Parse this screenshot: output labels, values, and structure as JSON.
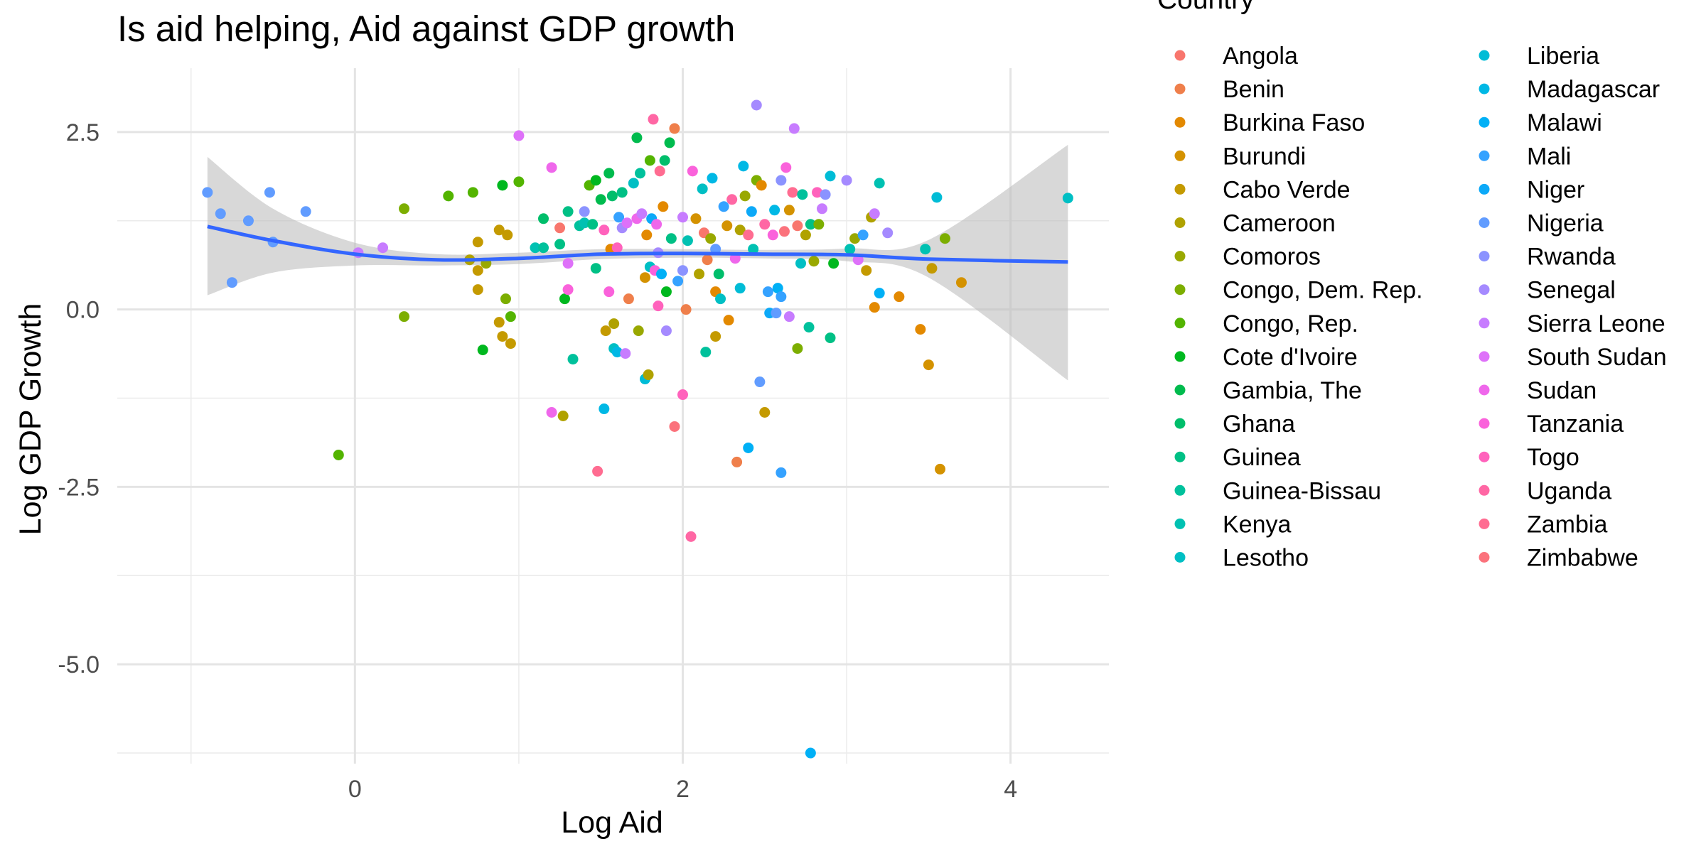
{
  "chart_data": {
    "type": "scatter",
    "title": "Is aid helping, Aid against GDP growth",
    "xlabel": "Log Aid",
    "ylabel": "Log GDP Growth",
    "xlim": [
      -1.45,
      4.6
    ],
    "ylim": [
      -6.4,
      3.4
    ],
    "x_ticks": [
      0,
      2,
      4
    ],
    "x_tick_labels": [
      "0",
      "2",
      "4"
    ],
    "y_ticks": [
      2.5,
      0.0,
      -2.5,
      -5.0
    ],
    "y_tick_labels": [
      "2.5",
      "0.0",
      "-2.5",
      "-5.0"
    ],
    "grid": true,
    "legend": {
      "title": "Country",
      "position": "right",
      "entries": [
        {
          "name": "Angola",
          "color": "#F8766D"
        },
        {
          "name": "Benin",
          "color": "#EF7F4B"
        },
        {
          "name": "Burkina Faso",
          "color": "#E38900"
        },
        {
          "name": "Burundi",
          "color": "#D49200"
        },
        {
          "name": "Cabo Verde",
          "color": "#C49A00"
        },
        {
          "name": "Cameroon",
          "color": "#B0A200"
        },
        {
          "name": "Comoros",
          "color": "#99A800"
        },
        {
          "name": "Congo, Dem. Rep.",
          "color": "#7CAE00"
        },
        {
          "name": "Congo, Rep.",
          "color": "#53B400"
        },
        {
          "name": "Cote d'Ivoire",
          "color": "#00B81F"
        },
        {
          "name": "Gambia, The",
          "color": "#00BB4E"
        },
        {
          "name": "Ghana",
          "color": "#00BE6B"
        },
        {
          "name": "Guinea",
          "color": "#00C085"
        },
        {
          "name": "Guinea-Bissau",
          "color": "#00C19C"
        },
        {
          "name": "Kenya",
          "color": "#00C1B2"
        },
        {
          "name": "Lesotho",
          "color": "#00BFC4"
        },
        {
          "name": "Liberia",
          "color": "#00BCD6"
        },
        {
          "name": "Madagascar",
          "color": "#00B8E5"
        },
        {
          "name": "Malawi",
          "color": "#00B0F6"
        },
        {
          "name": "Mali",
          "color": "#35A2FF"
        },
        {
          "name": "Niger",
          "color": "#0CA9F8"
        },
        {
          "name": "Nigeria",
          "color": "#619CFF"
        },
        {
          "name": "Rwanda",
          "color": "#8B93FF"
        },
        {
          "name": "Senegal",
          "color": "#A58AFF"
        },
        {
          "name": "Sierra Leone",
          "color": "#C77CFF"
        },
        {
          "name": "South Sudan",
          "color": "#DE71F9"
        },
        {
          "name": "Sudan",
          "color": "#EF67EB"
        },
        {
          "name": "Tanzania",
          "color": "#FA62DB"
        },
        {
          "name": "Togo",
          "color": "#FF62BC"
        },
        {
          "name": "Uganda",
          "color": "#FF67A4"
        },
        {
          "name": "Zambia",
          "color": "#FF6C91"
        },
        {
          "name": "Zimbabwe",
          "color": "#FB727C"
        }
      ]
    },
    "smooth": {
      "method": "loess",
      "color": "#3366FF",
      "band_color": "#BEBEBE",
      "x": [
        -0.9,
        -0.5,
        0.0,
        0.5,
        1.0,
        1.5,
        2.0,
        2.5,
        3.0,
        3.5,
        4.35
      ],
      "y": [
        1.17,
        0.97,
        0.78,
        0.7,
        0.72,
        0.78,
        0.79,
        0.78,
        0.77,
        0.71,
        0.67
      ],
      "lower": [
        0.2,
        0.52,
        0.62,
        0.62,
        0.64,
        0.71,
        0.73,
        0.72,
        0.68,
        0.45,
        -1.0
      ],
      "upper": [
        2.15,
        1.42,
        0.94,
        0.78,
        0.8,
        0.85,
        0.85,
        0.84,
        0.86,
        0.98,
        2.32
      ]
    },
    "points": [
      {
        "x": -0.9,
        "y": 1.65,
        "c": 21
      },
      {
        "x": -0.82,
        "y": 1.35,
        "c": 21
      },
      {
        "x": -0.75,
        "y": 0.38,
        "c": 21
      },
      {
        "x": -0.65,
        "y": 1.25,
        "c": 21
      },
      {
        "x": -0.52,
        "y": 1.65,
        "c": 21
      },
      {
        "x": -0.5,
        "y": 0.95,
        "c": 21
      },
      {
        "x": -0.3,
        "y": 1.38,
        "c": 21
      },
      {
        "x": 0.02,
        "y": 0.8,
        "c": 24
      },
      {
        "x": 0.17,
        "y": 0.87,
        "c": 24
      },
      {
        "x": -0.1,
        "y": -2.05,
        "c": 8
      },
      {
        "x": 0.3,
        "y": 1.42,
        "c": 7
      },
      {
        "x": 0.3,
        "y": -0.1,
        "c": 7
      },
      {
        "x": 0.57,
        "y": 1.6,
        "c": 8
      },
      {
        "x": 0.72,
        "y": 1.65,
        "c": 8
      },
      {
        "x": 0.7,
        "y": 0.7,
        "c": 5
      },
      {
        "x": 0.75,
        "y": 0.95,
        "c": 4
      },
      {
        "x": 0.75,
        "y": 0.55,
        "c": 4
      },
      {
        "x": 0.75,
        "y": 0.28,
        "c": 4
      },
      {
        "x": 0.78,
        "y": -0.57,
        "c": 9
      },
      {
        "x": 0.8,
        "y": 0.65,
        "c": 6
      },
      {
        "x": 0.88,
        "y": 1.12,
        "c": 4
      },
      {
        "x": 0.88,
        "y": -0.18,
        "c": 4
      },
      {
        "x": 0.9,
        "y": -0.38,
        "c": 4
      },
      {
        "x": 0.9,
        "y": 1.75,
        "c": 9
      },
      {
        "x": 0.92,
        "y": 0.15,
        "c": 7
      },
      {
        "x": 0.93,
        "y": 1.05,
        "c": 4
      },
      {
        "x": 0.95,
        "y": -0.48,
        "c": 4
      },
      {
        "x": 0.95,
        "y": -0.1,
        "c": 8
      },
      {
        "x": 1.0,
        "y": 2.45,
        "c": 25
      },
      {
        "x": 1.0,
        "y": 1.8,
        "c": 8
      },
      {
        "x": 1.1,
        "y": 0.87,
        "c": 14
      },
      {
        "x": 1.15,
        "y": 0.87,
        "c": 13
      },
      {
        "x": 1.15,
        "y": 1.28,
        "c": 11
      },
      {
        "x": 1.2,
        "y": 2.0,
        "c": 26
      },
      {
        "x": 1.2,
        "y": -1.45,
        "c": 26
      },
      {
        "x": 1.25,
        "y": 0.92,
        "c": 12
      },
      {
        "x": 1.25,
        "y": 1.15,
        "c": 0
      },
      {
        "x": 1.27,
        "y": -1.5,
        "c": 5
      },
      {
        "x": 1.28,
        "y": 0.15,
        "c": 9
      },
      {
        "x": 1.3,
        "y": 0.28,
        "c": 27
      },
      {
        "x": 1.3,
        "y": 0.65,
        "c": 25
      },
      {
        "x": 1.3,
        "y": 1.38,
        "c": 12
      },
      {
        "x": 1.33,
        "y": -0.7,
        "c": 13
      },
      {
        "x": 1.37,
        "y": 1.18,
        "c": 13
      },
      {
        "x": 1.4,
        "y": 1.38,
        "c": 22
      },
      {
        "x": 1.4,
        "y": 1.22,
        "c": 14
      },
      {
        "x": 1.43,
        "y": 1.75,
        "c": 8
      },
      {
        "x": 1.45,
        "y": 1.2,
        "c": 12
      },
      {
        "x": 1.47,
        "y": 0.58,
        "c": 12
      },
      {
        "x": 1.47,
        "y": 1.82,
        "c": 9
      },
      {
        "x": 1.48,
        "y": -2.28,
        "c": 30
      },
      {
        "x": 1.5,
        "y": 1.55,
        "c": 10
      },
      {
        "x": 1.52,
        "y": 1.12,
        "c": 28
      },
      {
        "x": 1.52,
        "y": -1.4,
        "c": 17
      },
      {
        "x": 1.53,
        "y": -0.3,
        "c": 4
      },
      {
        "x": 1.55,
        "y": 0.25,
        "c": 27
      },
      {
        "x": 1.55,
        "y": 1.92,
        "c": 10
      },
      {
        "x": 1.56,
        "y": 0.85,
        "c": 2
      },
      {
        "x": 1.57,
        "y": 1.6,
        "c": 11
      },
      {
        "x": 1.58,
        "y": -0.2,
        "c": 5
      },
      {
        "x": 1.58,
        "y": -0.55,
        "c": 15
      },
      {
        "x": 1.6,
        "y": 0.87,
        "c": 28
      },
      {
        "x": 1.6,
        "y": -0.6,
        "c": 17
      },
      {
        "x": 1.61,
        "y": 1.3,
        "c": 19
      },
      {
        "x": 1.63,
        "y": 1.65,
        "c": 12
      },
      {
        "x": 1.63,
        "y": 1.15,
        "c": 23
      },
      {
        "x": 1.65,
        "y": -0.62,
        "c": 24
      },
      {
        "x": 1.66,
        "y": 1.22,
        "c": 25
      },
      {
        "x": 1.67,
        "y": 0.15,
        "c": 1
      },
      {
        "x": 1.7,
        "y": 1.78,
        "c": 15
      },
      {
        "x": 1.72,
        "y": 2.42,
        "c": 10
      },
      {
        "x": 1.72,
        "y": 1.28,
        "c": 26
      },
      {
        "x": 1.73,
        "y": -0.3,
        "c": 6
      },
      {
        "x": 1.74,
        "y": 1.92,
        "c": 13
      },
      {
        "x": 1.75,
        "y": 1.35,
        "c": 24
      },
      {
        "x": 1.77,
        "y": 0.45,
        "c": 3
      },
      {
        "x": 1.77,
        "y": -0.98,
        "c": 16
      },
      {
        "x": 1.78,
        "y": 1.05,
        "c": 2
      },
      {
        "x": 1.79,
        "y": -0.92,
        "c": 5
      },
      {
        "x": 1.8,
        "y": 2.1,
        "c": 8
      },
      {
        "x": 1.8,
        "y": 0.6,
        "c": 15
      },
      {
        "x": 1.81,
        "y": 1.28,
        "c": 20
      },
      {
        "x": 1.82,
        "y": 2.68,
        "c": 29
      },
      {
        "x": 1.83,
        "y": 0.55,
        "c": 27
      },
      {
        "x": 1.84,
        "y": 1.2,
        "c": 26
      },
      {
        "x": 1.85,
        "y": 0.8,
        "c": 23
      },
      {
        "x": 1.85,
        "y": 0.05,
        "c": 28
      },
      {
        "x": 1.86,
        "y": 1.95,
        "c": 30
      },
      {
        "x": 1.87,
        "y": 0.5,
        "c": 18
      },
      {
        "x": 1.88,
        "y": 1.45,
        "c": 2
      },
      {
        "x": 1.89,
        "y": 2.1,
        "c": 11
      },
      {
        "x": 1.9,
        "y": -0.3,
        "c": 23
      },
      {
        "x": 1.9,
        "y": 0.25,
        "c": 9
      },
      {
        "x": 1.92,
        "y": 2.35,
        "c": 10
      },
      {
        "x": 1.93,
        "y": 1.0,
        "c": 12
      },
      {
        "x": 1.95,
        "y": -1.65,
        "c": 31
      },
      {
        "x": 1.95,
        "y": 2.55,
        "c": 1
      },
      {
        "x": 1.97,
        "y": 0.4,
        "c": 19
      },
      {
        "x": 2.0,
        "y": 0.55,
        "c": 22
      },
      {
        "x": 2.0,
        "y": -1.2,
        "c": 28
      },
      {
        "x": 2.0,
        "y": 1.3,
        "c": 24
      },
      {
        "x": 2.02,
        "y": 0.0,
        "c": 1
      },
      {
        "x": 2.03,
        "y": 0.97,
        "c": 14
      },
      {
        "x": 2.05,
        "y": -3.2,
        "c": 29
      },
      {
        "x": 2.06,
        "y": 1.95,
        "c": 27
      },
      {
        "x": 2.08,
        "y": 1.28,
        "c": 3
      },
      {
        "x": 2.1,
        "y": 0.5,
        "c": 5
      },
      {
        "x": 2.12,
        "y": 1.7,
        "c": 15
      },
      {
        "x": 2.13,
        "y": 1.08,
        "c": 0
      },
      {
        "x": 2.14,
        "y": -0.6,
        "c": 13
      },
      {
        "x": 2.15,
        "y": 0.7,
        "c": 1
      },
      {
        "x": 2.17,
        "y": 1.0,
        "c": 6
      },
      {
        "x": 2.18,
        "y": 1.85,
        "c": 17
      },
      {
        "x": 2.2,
        "y": 0.25,
        "c": 2
      },
      {
        "x": 2.2,
        "y": -0.38,
        "c": 4
      },
      {
        "x": 2.2,
        "y": 0.85,
        "c": 21
      },
      {
        "x": 2.22,
        "y": 0.5,
        "c": 11
      },
      {
        "x": 2.23,
        "y": 0.15,
        "c": 15
      },
      {
        "x": 2.25,
        "y": 1.45,
        "c": 19
      },
      {
        "x": 2.27,
        "y": 1.18,
        "c": 3
      },
      {
        "x": 2.28,
        "y": -0.15,
        "c": 2
      },
      {
        "x": 2.3,
        "y": 1.55,
        "c": 29
      },
      {
        "x": 2.32,
        "y": 0.72,
        "c": 26
      },
      {
        "x": 2.33,
        "y": -2.15,
        "c": 1
      },
      {
        "x": 2.35,
        "y": 0.3,
        "c": 16
      },
      {
        "x": 2.35,
        "y": 1.12,
        "c": 5
      },
      {
        "x": 2.37,
        "y": 2.02,
        "c": 17
      },
      {
        "x": 2.38,
        "y": 1.6,
        "c": 6
      },
      {
        "x": 2.4,
        "y": 1.05,
        "c": 30
      },
      {
        "x": 2.4,
        "y": -1.95,
        "c": 18
      },
      {
        "x": 2.42,
        "y": 1.38,
        "c": 20
      },
      {
        "x": 2.43,
        "y": 0.85,
        "c": 14
      },
      {
        "x": 2.45,
        "y": 2.88,
        "c": 23
      },
      {
        "x": 2.45,
        "y": 1.82,
        "c": 7
      },
      {
        "x": 2.47,
        "y": -1.02,
        "c": 21
      },
      {
        "x": 2.48,
        "y": 1.75,
        "c": 2
      },
      {
        "x": 2.5,
        "y": -1.45,
        "c": 4
      },
      {
        "x": 2.5,
        "y": 1.2,
        "c": 29
      },
      {
        "x": 2.52,
        "y": 0.25,
        "c": 19
      },
      {
        "x": 2.53,
        "y": -0.05,
        "c": 20
      },
      {
        "x": 2.55,
        "y": 1.05,
        "c": 27
      },
      {
        "x": 2.56,
        "y": 1.4,
        "c": 17
      },
      {
        "x": 2.57,
        "y": -0.05,
        "c": 21
      },
      {
        "x": 2.58,
        "y": 0.3,
        "c": 18
      },
      {
        "x": 2.6,
        "y": -2.3,
        "c": 19
      },
      {
        "x": 2.6,
        "y": 1.82,
        "c": 22
      },
      {
        "x": 2.6,
        "y": 0.18,
        "c": 19
      },
      {
        "x": 2.62,
        "y": 1.1,
        "c": 31
      },
      {
        "x": 2.63,
        "y": 2.0,
        "c": 27
      },
      {
        "x": 2.65,
        "y": 1.4,
        "c": 3
      },
      {
        "x": 2.65,
        "y": -0.1,
        "c": 24
      },
      {
        "x": 2.67,
        "y": 1.65,
        "c": 30
      },
      {
        "x": 2.68,
        "y": 2.55,
        "c": 24
      },
      {
        "x": 2.7,
        "y": 1.18,
        "c": 0
      },
      {
        "x": 2.7,
        "y": -0.55,
        "c": 7
      },
      {
        "x": 2.72,
        "y": 0.65,
        "c": 15
      },
      {
        "x": 2.73,
        "y": 1.62,
        "c": 13
      },
      {
        "x": 2.75,
        "y": 1.05,
        "c": 5
      },
      {
        "x": 2.77,
        "y": -0.25,
        "c": 13
      },
      {
        "x": 2.78,
        "y": -6.25,
        "c": 18
      },
      {
        "x": 2.78,
        "y": 1.2,
        "c": 12
      },
      {
        "x": 2.8,
        "y": 0.68,
        "c": 6
      },
      {
        "x": 2.82,
        "y": 1.65,
        "c": 28
      },
      {
        "x": 2.83,
        "y": 1.2,
        "c": 7
      },
      {
        "x": 2.85,
        "y": 1.42,
        "c": 24
      },
      {
        "x": 2.87,
        "y": 1.62,
        "c": 22
      },
      {
        "x": 2.9,
        "y": 1.88,
        "c": 16
      },
      {
        "x": 2.9,
        "y": -0.4,
        "c": 12
      },
      {
        "x": 2.92,
        "y": 0.65,
        "c": 9
      },
      {
        "x": 3.0,
        "y": 1.82,
        "c": 23
      },
      {
        "x": 3.02,
        "y": 0.85,
        "c": 14
      },
      {
        "x": 3.05,
        "y": 1.0,
        "c": 6
      },
      {
        "x": 3.07,
        "y": 0.7,
        "c": 25
      },
      {
        "x": 3.1,
        "y": 1.05,
        "c": 19
      },
      {
        "x": 3.12,
        "y": 0.55,
        "c": 4
      },
      {
        "x": 3.15,
        "y": 1.3,
        "c": 5
      },
      {
        "x": 3.17,
        "y": 1.35,
        "c": 24
      },
      {
        "x": 3.17,
        "y": 0.03,
        "c": 2
      },
      {
        "x": 3.2,
        "y": 1.78,
        "c": 14
      },
      {
        "x": 3.2,
        "y": 0.23,
        "c": 18
      },
      {
        "x": 3.25,
        "y": 1.08,
        "c": 23
      },
      {
        "x": 3.32,
        "y": 0.18,
        "c": 2
      },
      {
        "x": 3.45,
        "y": -0.28,
        "c": 2
      },
      {
        "x": 3.48,
        "y": 0.85,
        "c": 14
      },
      {
        "x": 3.5,
        "y": -0.78,
        "c": 3
      },
      {
        "x": 3.52,
        "y": 0.58,
        "c": 4
      },
      {
        "x": 3.55,
        "y": 1.58,
        "c": 16
      },
      {
        "x": 3.57,
        "y": -2.25,
        "c": 3
      },
      {
        "x": 3.6,
        "y": 1.0,
        "c": 7
      },
      {
        "x": 3.7,
        "y": 0.38,
        "c": 3
      },
      {
        "x": 4.35,
        "y": 1.57,
        "c": 15
      }
    ]
  }
}
